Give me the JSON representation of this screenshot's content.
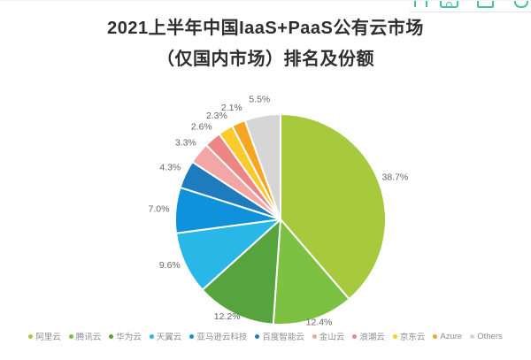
{
  "header": {
    "title_line1": "2021上半年中国IaaS+PaaS公有云市场",
    "title_line2": "（仅国内市场）排名及份额"
  },
  "top_toolbar": {
    "icon_color": "#46C29E",
    "icons": [
      "brackets-icon",
      "tag-icon",
      "window-icon",
      "share-icon"
    ]
  },
  "chart_data": {
    "type": "pie",
    "title": "2021上半年中国IaaS+PaaS公有云市场（仅国内市场）排名及份额",
    "categories": [
      "阿里云",
      "腾讯云",
      "华为云",
      "天翼云",
      "亚马逊云科技",
      "百度智能云",
      "金山云",
      "浪潮云",
      "京东云",
      "Azure",
      "Others"
    ],
    "values": [
      38.7,
      12.4,
      12.2,
      9.6,
      7.0,
      4.3,
      3.3,
      2.6,
      2.3,
      2.1,
      5.5
    ],
    "colors": [
      "#A6C93D",
      "#7CC142",
      "#57A43F",
      "#29B7E8",
      "#1091DB",
      "#1E7CBE",
      "#F2A6A6",
      "#ED8585",
      "#FBCB2C",
      "#F6A623",
      "#D6D6D6"
    ],
    "label_format": "{value}%",
    "start_angle_deg": 0,
    "direction": "clockwise",
    "legend_position": "bottom",
    "label_color": "#666666",
    "slice_gap_color": "#FFFFFF"
  }
}
